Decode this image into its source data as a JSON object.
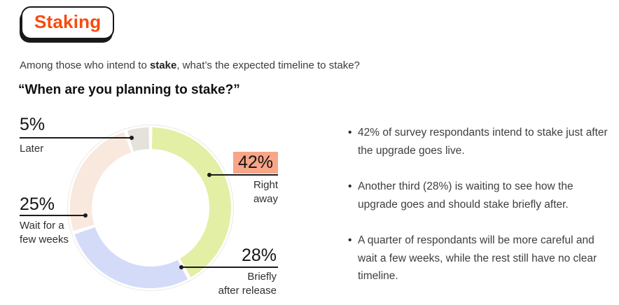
{
  "header": {
    "badge_label": "Staking",
    "subtitle_prefix": "Among those who intend to ",
    "subtitle_bold": "stake",
    "subtitle_suffix": ", what’s the expected timeline to stake?",
    "question": "“When are you planning to stake?”"
  },
  "chart_data": {
    "type": "pie",
    "donut": true,
    "title": "When are you planning to stake?",
    "unit": "%",
    "start_angle_deg": 0,
    "direction": "clockwise",
    "segments": [
      {
        "label": "Right away",
        "value": 42,
        "color": "#e3efa4",
        "highlighted": true
      },
      {
        "label": "Briefly after release",
        "value": 28,
        "color": "#d4dbf8",
        "highlighted": false
      },
      {
        "label": "Wait for a few weeks",
        "value": 25,
        "color": "#f9e8dd",
        "highlighted": false
      },
      {
        "label": "Later",
        "value": 5,
        "color": "#e5e2db",
        "highlighted": false
      }
    ]
  },
  "callouts": {
    "later": {
      "value": "5%",
      "lines": [
        "Later"
      ]
    },
    "wait": {
      "value": "25%",
      "lines": [
        "Wait for a",
        "few weeks"
      ]
    },
    "right": {
      "value": "42%",
      "lines": [
        "Right",
        "away"
      ]
    },
    "briefly": {
      "value": "28%",
      "lines": [
        "Briefly",
        "after release"
      ]
    }
  },
  "insights": {
    "bullets": [
      "42% of survey respondants intend to stake just after the upgrade goes live.",
      "Another third (28%) is waiting to see how the upgrade goes and should stake briefly after.",
      "A quarter of respondants will be more careful and wait a few weeks, while the rest still have no clear timeline."
    ]
  },
  "colors": {
    "accent_orange": "#f84b0e",
    "highlight_bg": "#f8a588",
    "line_black": "#1c1c1c"
  }
}
